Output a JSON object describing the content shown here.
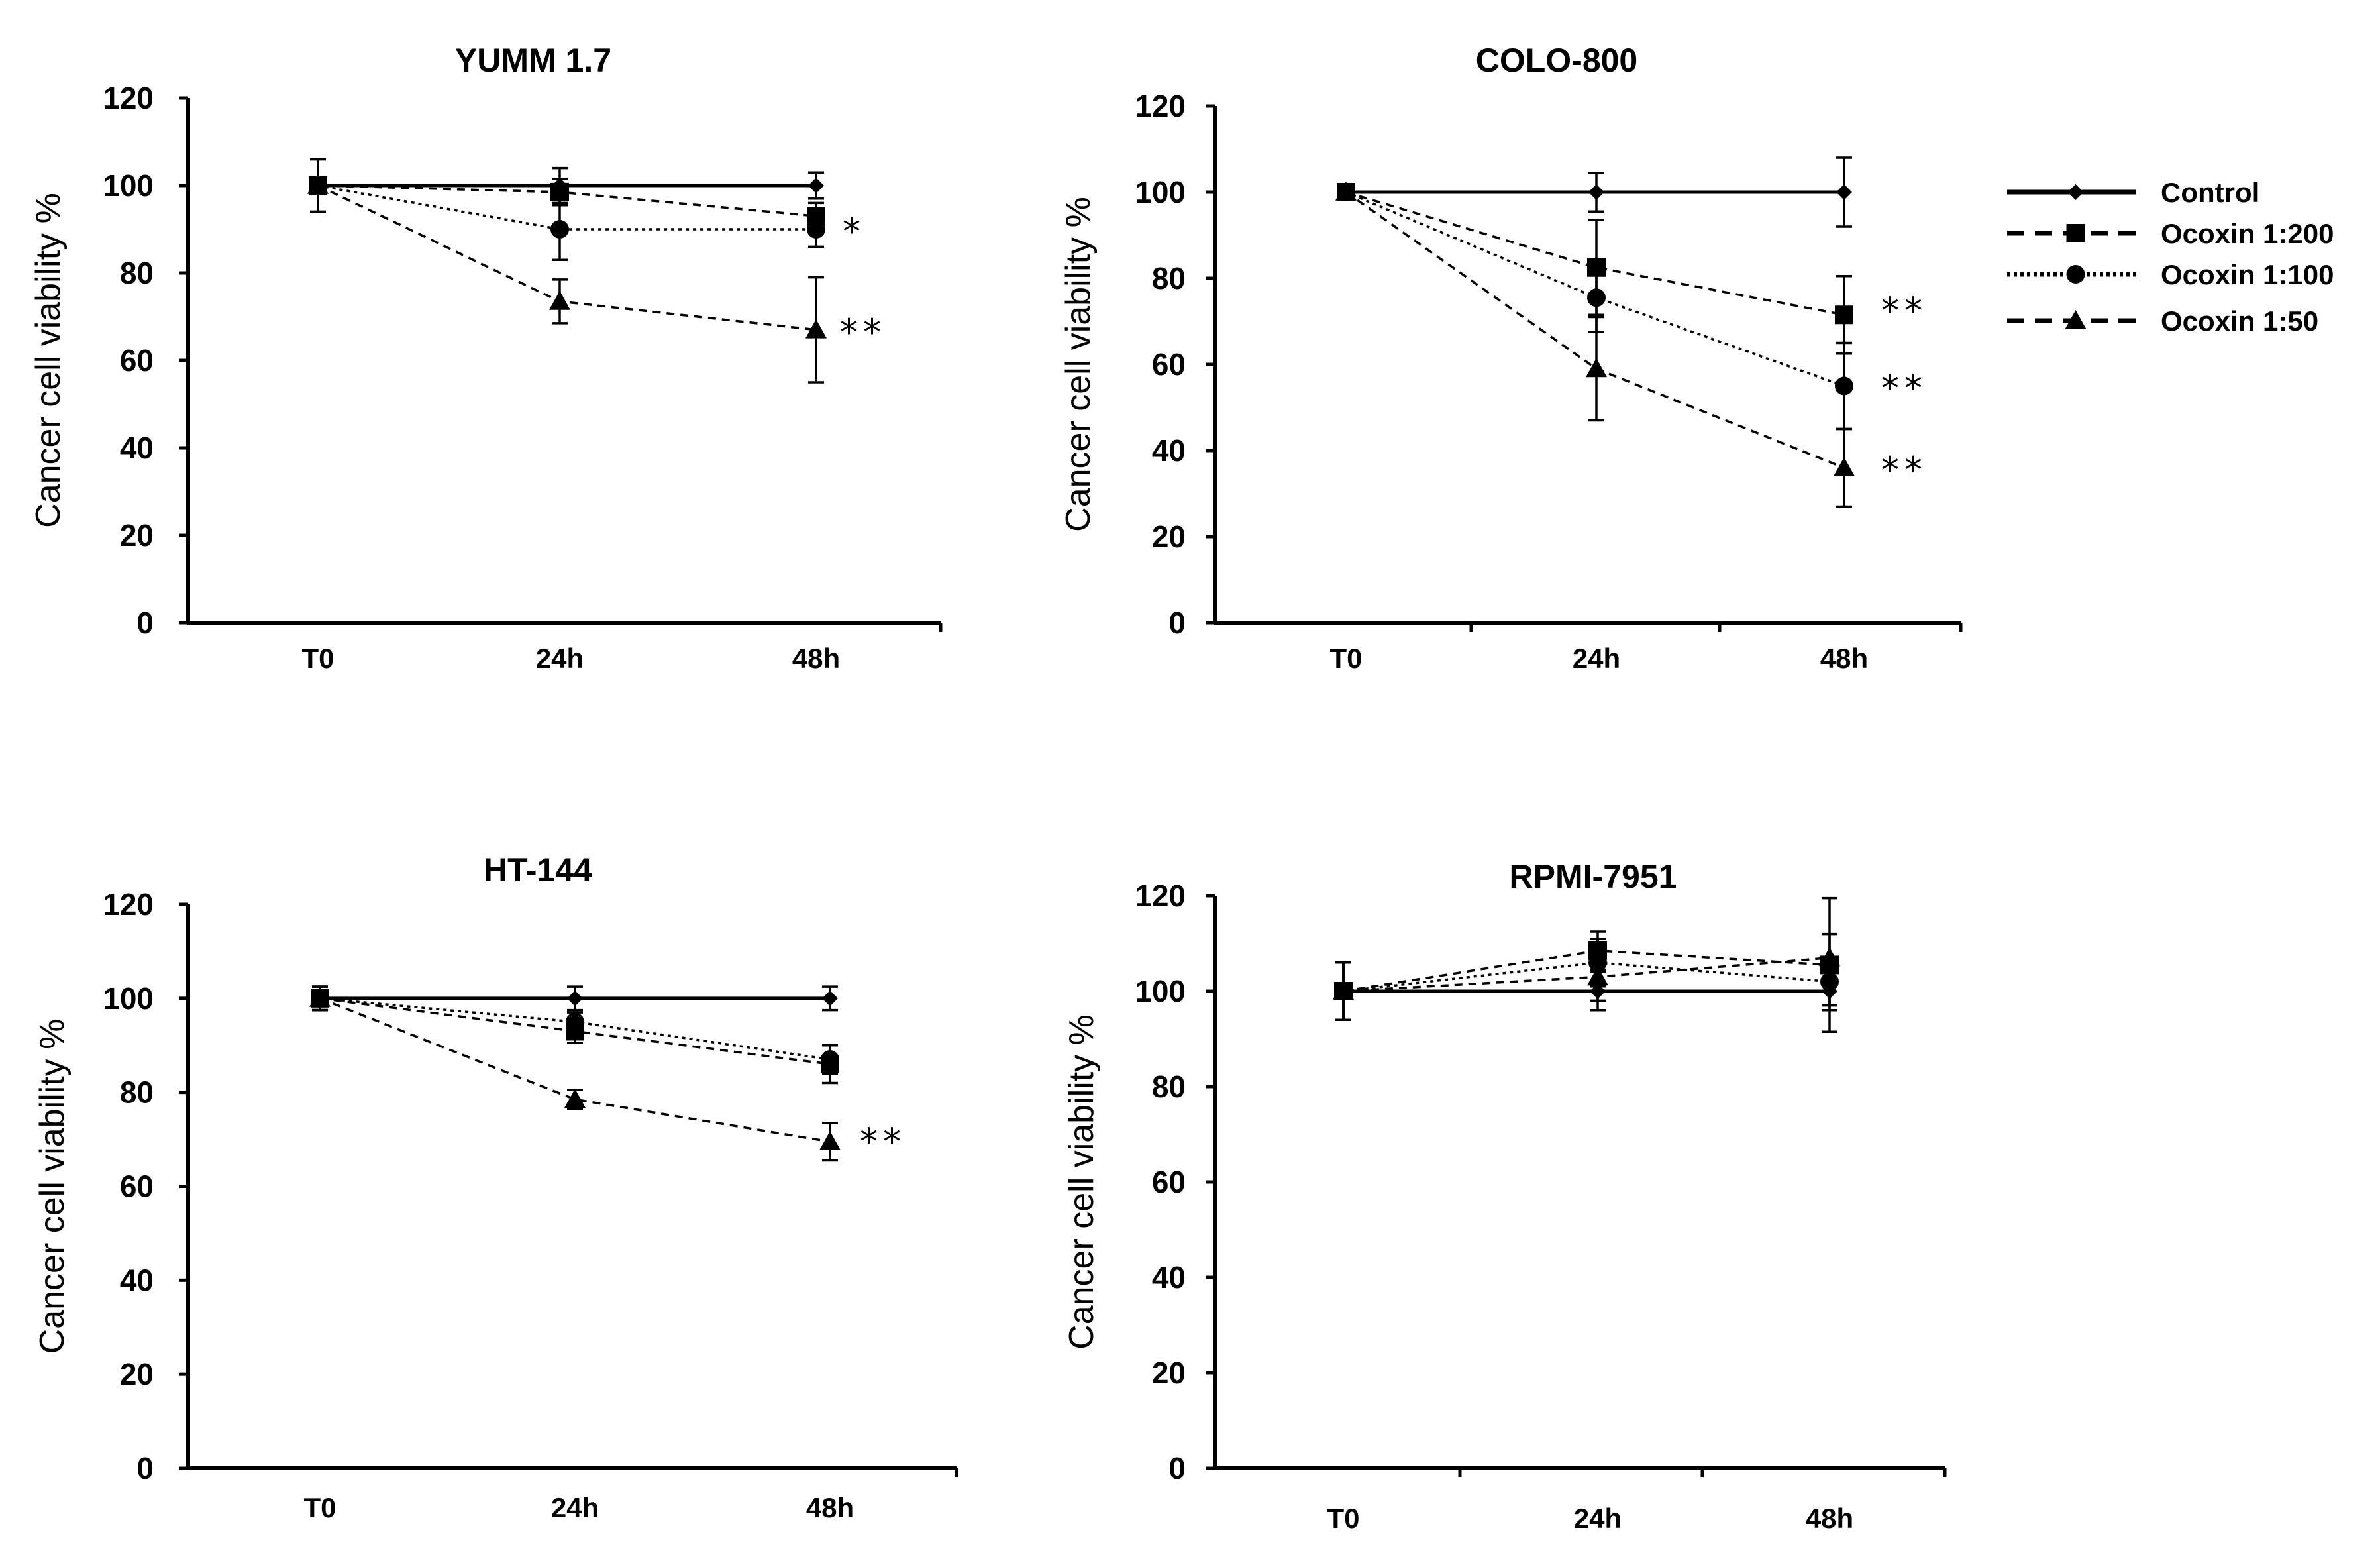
{
  "legend": [
    {
      "name": "Control",
      "marker": "diamond",
      "dash": "solid"
    },
    {
      "name": "Ocoxin 1:200",
      "marker": "square",
      "dash": "longdash"
    },
    {
      "name": "Ocoxin 1:100",
      "marker": "circle",
      "dash": "dotted"
    },
    {
      "name": "Ocoxin 1:50",
      "marker": "triangle",
      "dash": "longdash"
    }
  ],
  "chart_data": [
    {
      "type": "line",
      "title": "YUMM 1.7",
      "ylabel": "Cancer cell viability %",
      "xlabel": "",
      "categories": [
        "T0",
        "24h",
        "48h"
      ],
      "ylim": [
        0,
        120
      ],
      "yticks": [
        0,
        20,
        40,
        60,
        80,
        100,
        120
      ],
      "series": [
        {
          "name": "Control",
          "values": [
            100,
            100,
            100
          ],
          "errors": [
            6,
            4,
            3
          ]
        },
        {
          "name": "Ocoxin 1:200",
          "values": [
            100,
            98.5,
            93
          ],
          "errors": [
            6,
            3,
            3
          ]
        },
        {
          "name": "Ocoxin 1:100",
          "values": [
            100,
            90,
            90
          ],
          "errors": [
            6,
            7,
            4
          ]
        },
        {
          "name": "Ocoxin 1:50",
          "values": [
            100,
            73.5,
            67
          ],
          "errors": [
            6,
            5,
            12
          ]
        }
      ],
      "annotations": [
        {
          "text": "*",
          "category": "48h",
          "y": 90
        },
        {
          "text": "**",
          "category": "48h",
          "y": 67
        }
      ]
    },
    {
      "type": "line",
      "title": "COLO-800",
      "ylabel": "Cancer cell viability %",
      "xlabel": "",
      "categories": [
        "T0",
        "24h",
        "48h"
      ],
      "ylim": [
        0,
        120
      ],
      "yticks": [
        0,
        20,
        40,
        60,
        80,
        100,
        120
      ],
      "series": [
        {
          "name": "Control",
          "values": [
            100,
            100,
            100
          ],
          "errors": [
            0,
            4.5,
            8
          ]
        },
        {
          "name": "Ocoxin 1:200",
          "values": [
            100,
            82.5,
            71.5
          ],
          "errors": [
            0,
            11,
            9
          ]
        },
        {
          "name": "Ocoxin 1:100",
          "values": [
            100,
            75.5,
            55
          ],
          "errors": [
            0,
            8,
            10
          ]
        },
        {
          "name": "Ocoxin 1:50",
          "values": [
            100,
            59,
            36
          ],
          "errors": [
            0,
            12,
            9
          ]
        }
      ],
      "annotations": [
        {
          "text": "**",
          "category": "48h",
          "y": 73
        },
        {
          "text": "**",
          "category": "48h",
          "y": 55
        },
        {
          "text": "**",
          "category": "48h",
          "y": 36
        }
      ]
    },
    {
      "type": "line",
      "title": "HT-144",
      "ylabel": "Cancer cell viability %",
      "xlabel": "",
      "categories": [
        "T0",
        "24h",
        "48h"
      ],
      "ylim": [
        0,
        120
      ],
      "yticks": [
        0,
        20,
        40,
        60,
        80,
        100,
        120
      ],
      "series": [
        {
          "name": "Control",
          "values": [
            100,
            100,
            100
          ],
          "errors": [
            2.5,
            2.5,
            2.5
          ]
        },
        {
          "name": "Ocoxin 1:200",
          "values": [
            100,
            93,
            86
          ],
          "errors": [
            2.5,
            2.5,
            4
          ]
        },
        {
          "name": "Ocoxin 1:100",
          "values": [
            100,
            95,
            87
          ],
          "errors": [
            2.5,
            2,
            3
          ]
        },
        {
          "name": "Ocoxin 1:50",
          "values": [
            100,
            78.5,
            69.5
          ],
          "errors": [
            2.5,
            2,
            4
          ]
        }
      ],
      "annotations": [
        {
          "text": "**",
          "category": "48h",
          "y": 70
        }
      ]
    },
    {
      "type": "line",
      "title": "RPMI-7951",
      "ylabel": "Cancer cell viability %",
      "xlabel": "",
      "categories": [
        "T0",
        "24h",
        "48h"
      ],
      "ylim": [
        0,
        120
      ],
      "yticks": [
        0,
        20,
        40,
        60,
        80,
        100,
        120
      ],
      "series": [
        {
          "name": "Control",
          "values": [
            100,
            100,
            100
          ],
          "errors": [
            6,
            4,
            4
          ]
        },
        {
          "name": "Ocoxin 1:200",
          "values": [
            100,
            108.5,
            105.5
          ],
          "errors": [
            6,
            4,
            14
          ]
        },
        {
          "name": "Ocoxin 1:100",
          "values": [
            100,
            106,
            102
          ],
          "errors": [
            6,
            5,
            5
          ]
        },
        {
          "name": "Ocoxin 1:50",
          "values": [
            100,
            103,
            107
          ],
          "errors": [
            6,
            5,
            5
          ]
        }
      ],
      "annotations": []
    }
  ]
}
